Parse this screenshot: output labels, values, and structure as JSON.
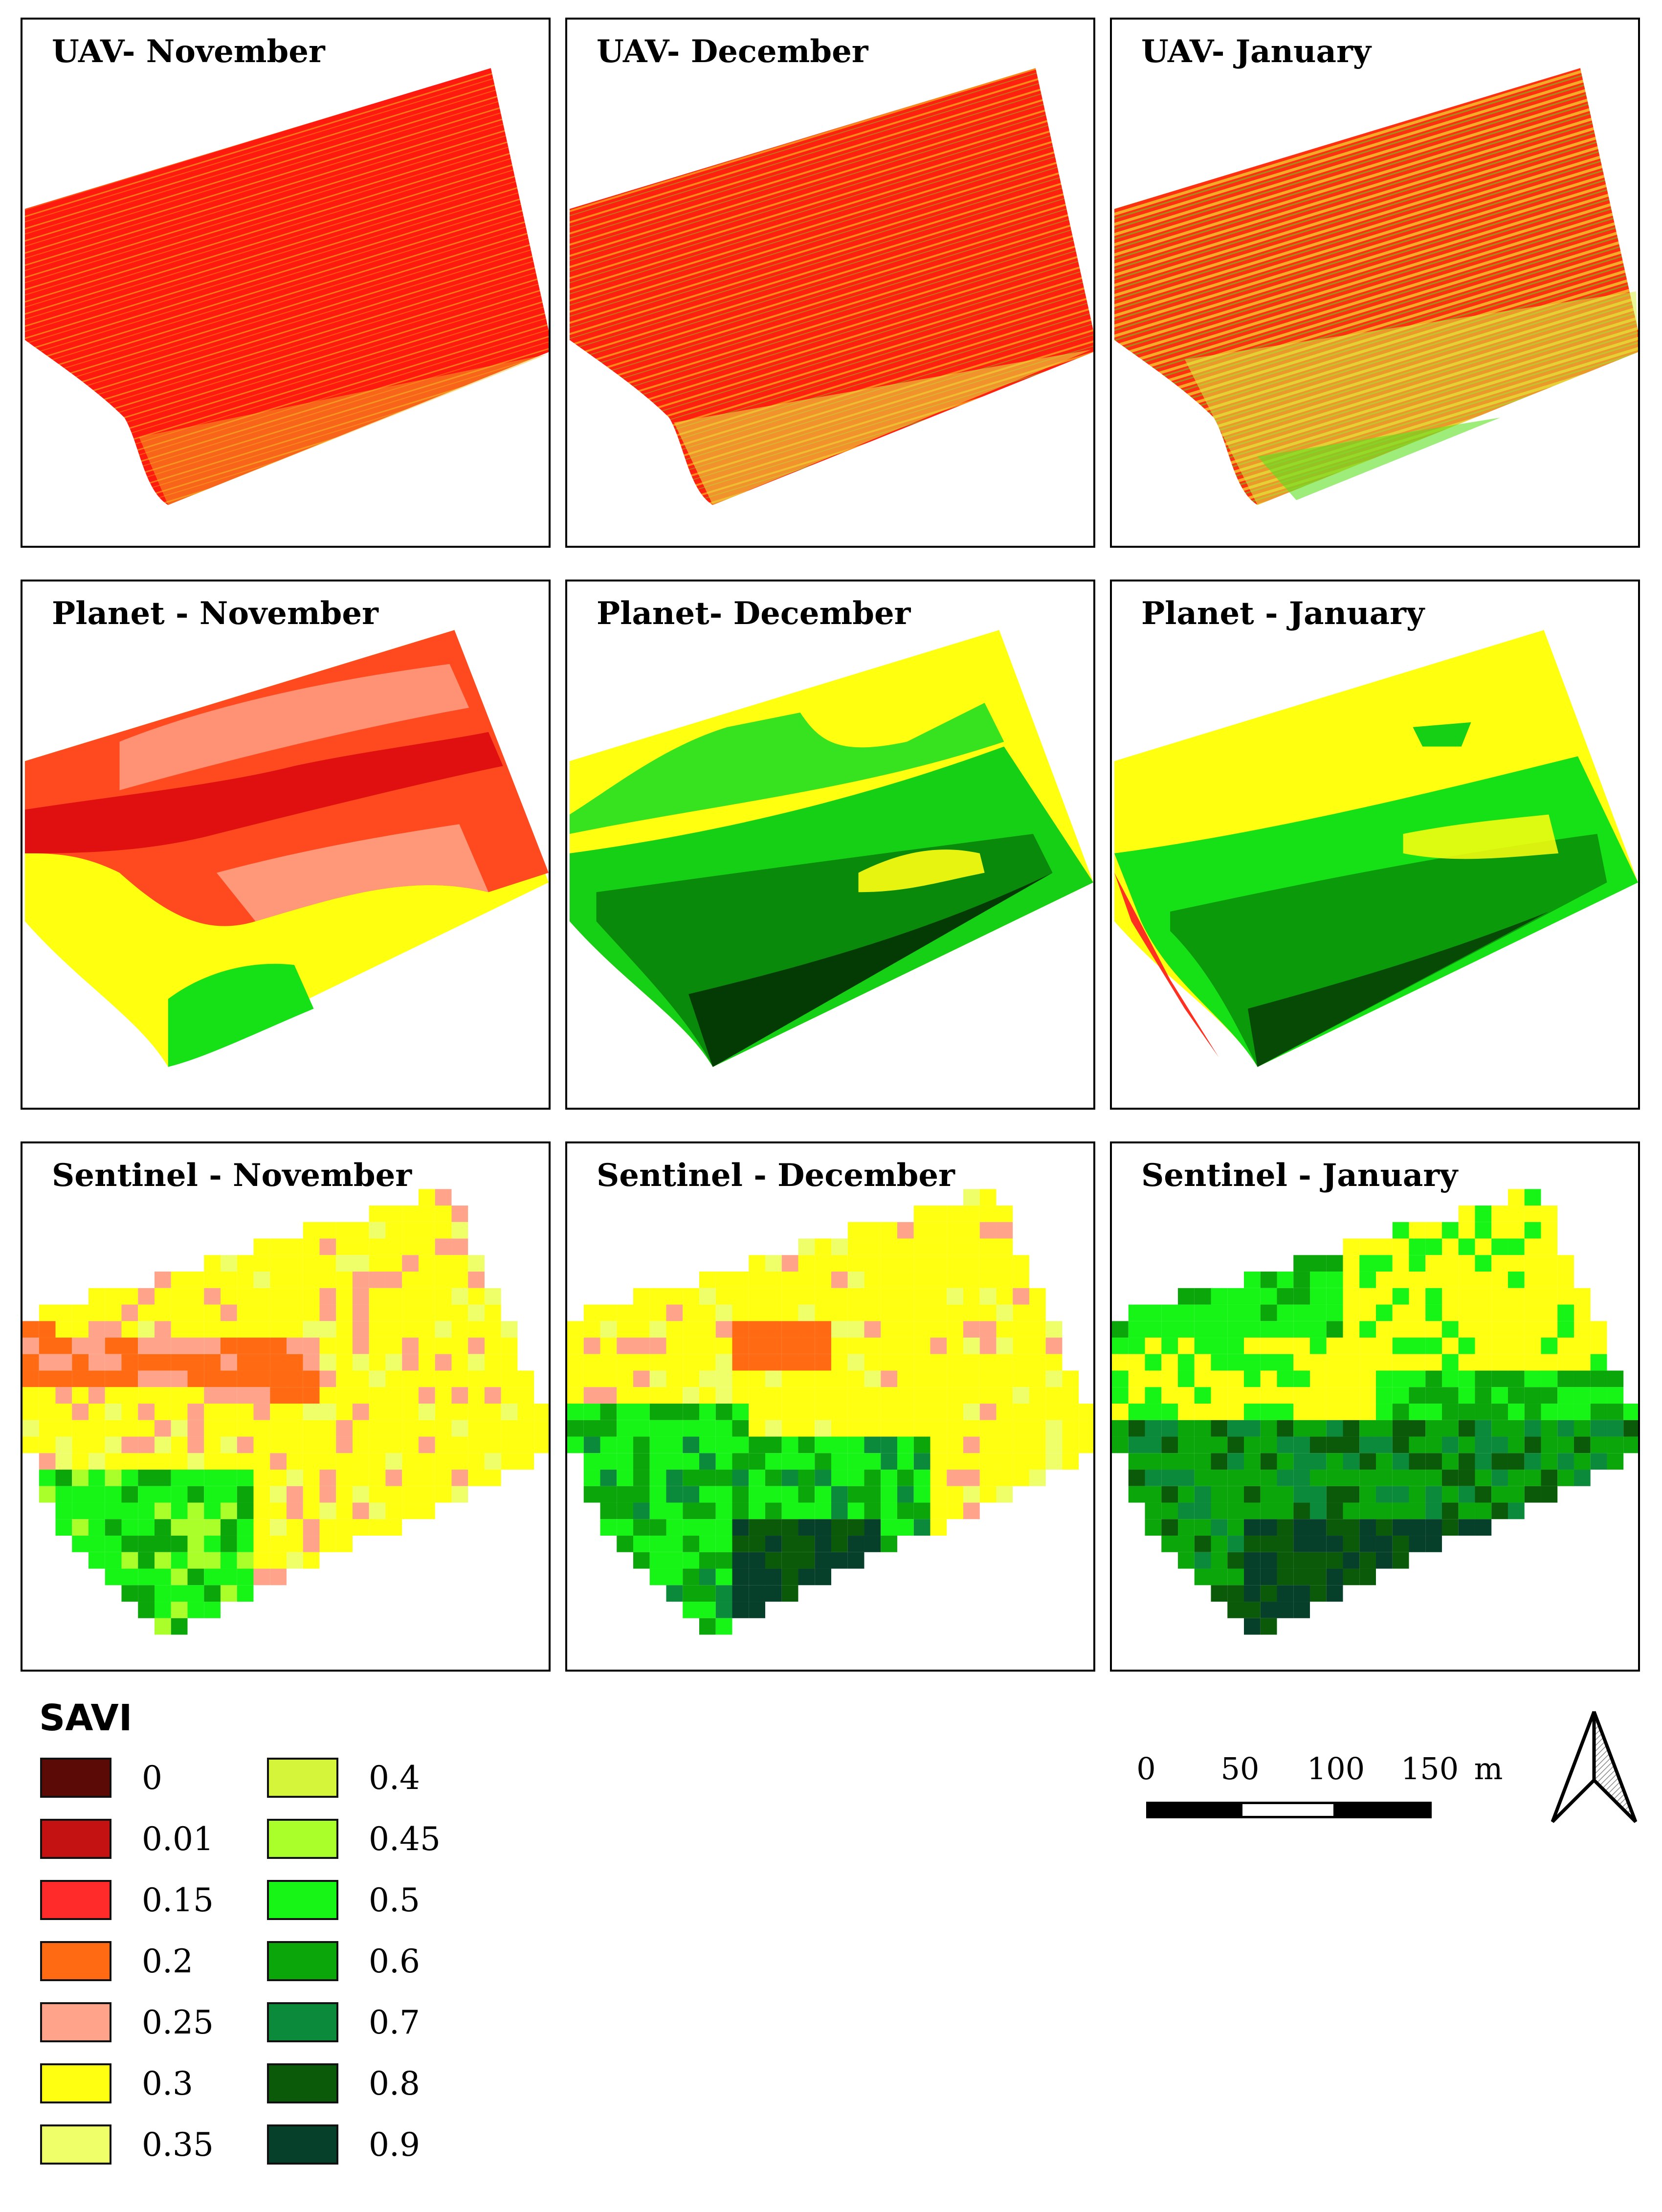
{
  "panels": [
    {
      "title": "UAV- November",
      "sensor": "UAV",
      "month": "November"
    },
    {
      "title": "UAV- December",
      "sensor": "UAV",
      "month": "December"
    },
    {
      "title": "UAV- January",
      "sensor": "UAV",
      "month": "January"
    },
    {
      "title": "Planet - November",
      "sensor": "Planet",
      "month": "November"
    },
    {
      "title": "Planet- December",
      "sensor": "Planet",
      "month": "December"
    },
    {
      "title": "Planet - January",
      "sensor": "Planet",
      "month": "January"
    },
    {
      "title": "Sentinel - November",
      "sensor": "Sentinel",
      "month": "November"
    },
    {
      "title": "Sentinel - December",
      "sensor": "Sentinel",
      "month": "December"
    },
    {
      "title": "Sentinel - January",
      "sensor": "Sentinel",
      "month": "January"
    }
  ],
  "legend": {
    "title": "SAVI",
    "items": [
      {
        "label": "0",
        "color": "#5c0a06"
      },
      {
        "label": "0.01",
        "color": "#c41212"
      },
      {
        "label": "0.15",
        "color": "#ff2a2a"
      },
      {
        "label": "0.2",
        "color": "#ff6a12"
      },
      {
        "label": "0.25",
        "color": "#ffa48a"
      },
      {
        "label": "0.3",
        "color": "#ffff12"
      },
      {
        "label": "0.35",
        "color": "#eeff6a"
      },
      {
        "label": "0.4",
        "color": "#d4f53a"
      },
      {
        "label": "0.45",
        "color": "#aaff2a"
      },
      {
        "label": "0.5",
        "color": "#16f516"
      },
      {
        "label": "0.6",
        "color": "#0aa60a"
      },
      {
        "label": "0.7",
        "color": "#0a8a3a"
      },
      {
        "label": "0.8",
        "color": "#0a5a0a"
      },
      {
        "label": "0.9",
        "color": "#06402a"
      }
    ]
  },
  "scale_bar": {
    "ticks": [
      "0",
      "50",
      "100",
      "150"
    ],
    "unit": "m"
  },
  "north_arrow": {
    "icon": "north-arrow-icon"
  }
}
